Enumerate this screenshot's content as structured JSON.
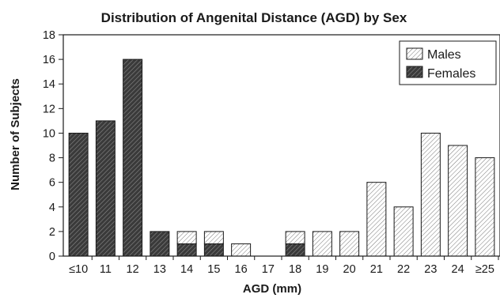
{
  "chart_data": {
    "type": "bar",
    "stacked": true,
    "title": "Distribution of Angenital Distance (AGD) by Sex",
    "xlabel": "AGD (mm)",
    "ylabel": "Number of Subjects",
    "ylim": [
      0,
      18
    ],
    "yticks": [
      0,
      2,
      4,
      6,
      8,
      10,
      12,
      14,
      16,
      18
    ],
    "grid": false,
    "legend_position": "top-right",
    "categories": [
      "≤10",
      "11",
      "12",
      "13",
      "14",
      "15",
      "16",
      "17",
      "18",
      "19",
      "20",
      "21",
      "22",
      "23",
      "24",
      "≥25"
    ],
    "series": [
      {
        "name": "Females",
        "pattern": "dark-hatch",
        "color": "#444444",
        "values": [
          10,
          11,
          16,
          2,
          1,
          1,
          0,
          0,
          1,
          0,
          0,
          0,
          0,
          0,
          0,
          0
        ]
      },
      {
        "name": "Males",
        "pattern": "light-hatch",
        "color": "#e8e8e8",
        "values": [
          0,
          0,
          0,
          0,
          1,
          1,
          1,
          0,
          1,
          2,
          2,
          6,
          4,
          10,
          9,
          8
        ]
      }
    ]
  }
}
